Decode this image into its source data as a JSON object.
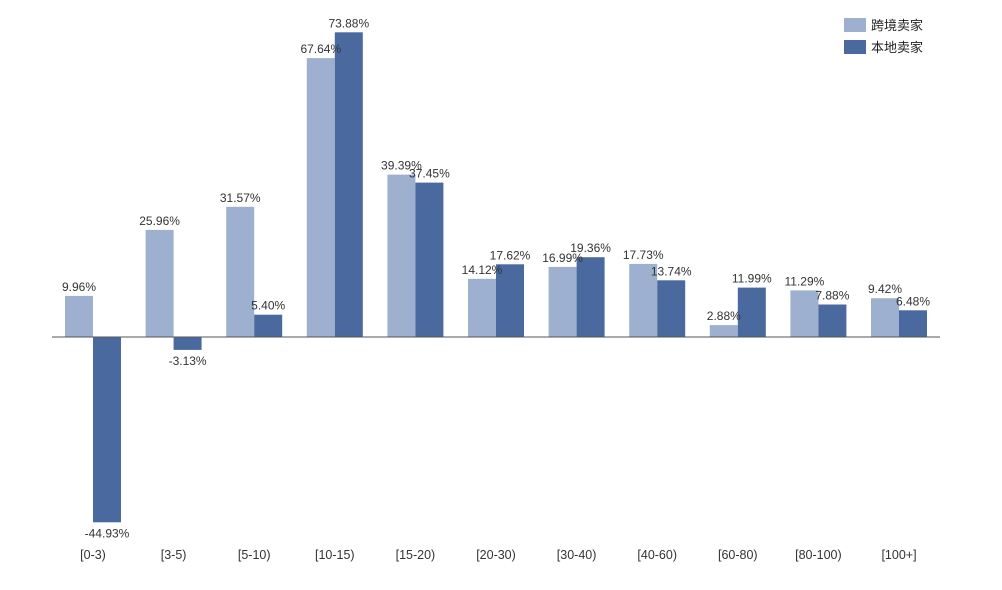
{
  "chart_data": {
    "type": "bar",
    "categories": [
      "[0-3)",
      "[3-5)",
      "[5-10)",
      "[10-15)",
      "[15-20)",
      "[20-30)",
      "[30-40)",
      "[40-60)",
      "[60-80)",
      "[80-100)",
      "[100+]"
    ],
    "series": [
      {
        "name": "跨境卖家",
        "color": "#9db0cf",
        "values": [
          9.96,
          25.96,
          31.57,
          67.64,
          39.39,
          14.12,
          16.99,
          17.73,
          2.88,
          11.29,
          9.42
        ],
        "labels": [
          "9.96%",
          "25.96%",
          "31.57%",
          "67.64%",
          "39.39%",
          "14.12%",
          "16.99%",
          "17.73%",
          "2.88%",
          "11.29%",
          "9.42%"
        ]
      },
      {
        "name": "本地卖家",
        "color": "#4a6a9f",
        "values": [
          -44.93,
          -3.13,
          5.4,
          73.88,
          37.45,
          17.62,
          19.36,
          13.74,
          11.99,
          7.88,
          6.48
        ],
        "labels": [
          "-44.93%",
          "-3.13%",
          "5.40%",
          "73.88%",
          "37.45%",
          "17.62%",
          "19.36%",
          "13.74%",
          "11.99%",
          "7.88%",
          "6.48%"
        ]
      }
    ],
    "ylim": [
      -45,
      75
    ],
    "grid": false,
    "legend_position": "top-right"
  }
}
